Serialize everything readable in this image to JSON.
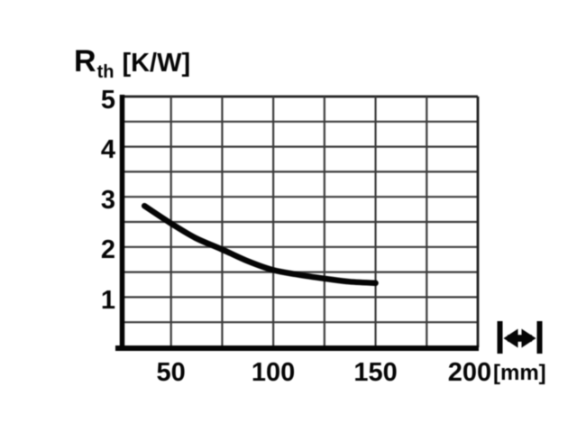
{
  "title": {
    "symbol": "R",
    "subscript": "th",
    "units": "[K/W]"
  },
  "x_axis": {
    "tick_labels": [
      "50",
      "100",
      "150",
      "200"
    ],
    "unit_label": "[mm]"
  },
  "y_axis": {
    "tick_labels": [
      "5",
      "4",
      "3",
      "2",
      "1"
    ]
  },
  "icons": {
    "length_dimension": "double-headed horizontal arrow between two end bars (heatsink length symbol)"
  },
  "colors": {
    "ink": "#050505",
    "grid": "#3c3c3c",
    "frame": "#1e1e1e",
    "background": "#ffffff"
  },
  "chart_data": {
    "type": "line",
    "title": "Thermal resistance vs heatsink length",
    "xlabel": "[mm]",
    "ylabel": "Rth [K/W]",
    "xlim": [
      25,
      200
    ],
    "ylim": [
      0,
      5
    ],
    "x_ticks": [
      50,
      100,
      150,
      200
    ],
    "y_ticks": [
      5,
      4,
      3,
      2,
      1
    ],
    "x_grid_step_mm": 25,
    "y_grid_step": 0.5,
    "grid": true,
    "legend": false,
    "series": [
      {
        "name": "Rth",
        "x_mm": [
          37,
          50,
          62,
          75,
          88,
          100,
          112,
          125,
          137,
          150
        ],
        "y_kw": [
          2.82,
          2.47,
          2.18,
          1.95,
          1.71,
          1.54,
          1.45,
          1.37,
          1.31,
          1.28
        ]
      }
    ]
  }
}
